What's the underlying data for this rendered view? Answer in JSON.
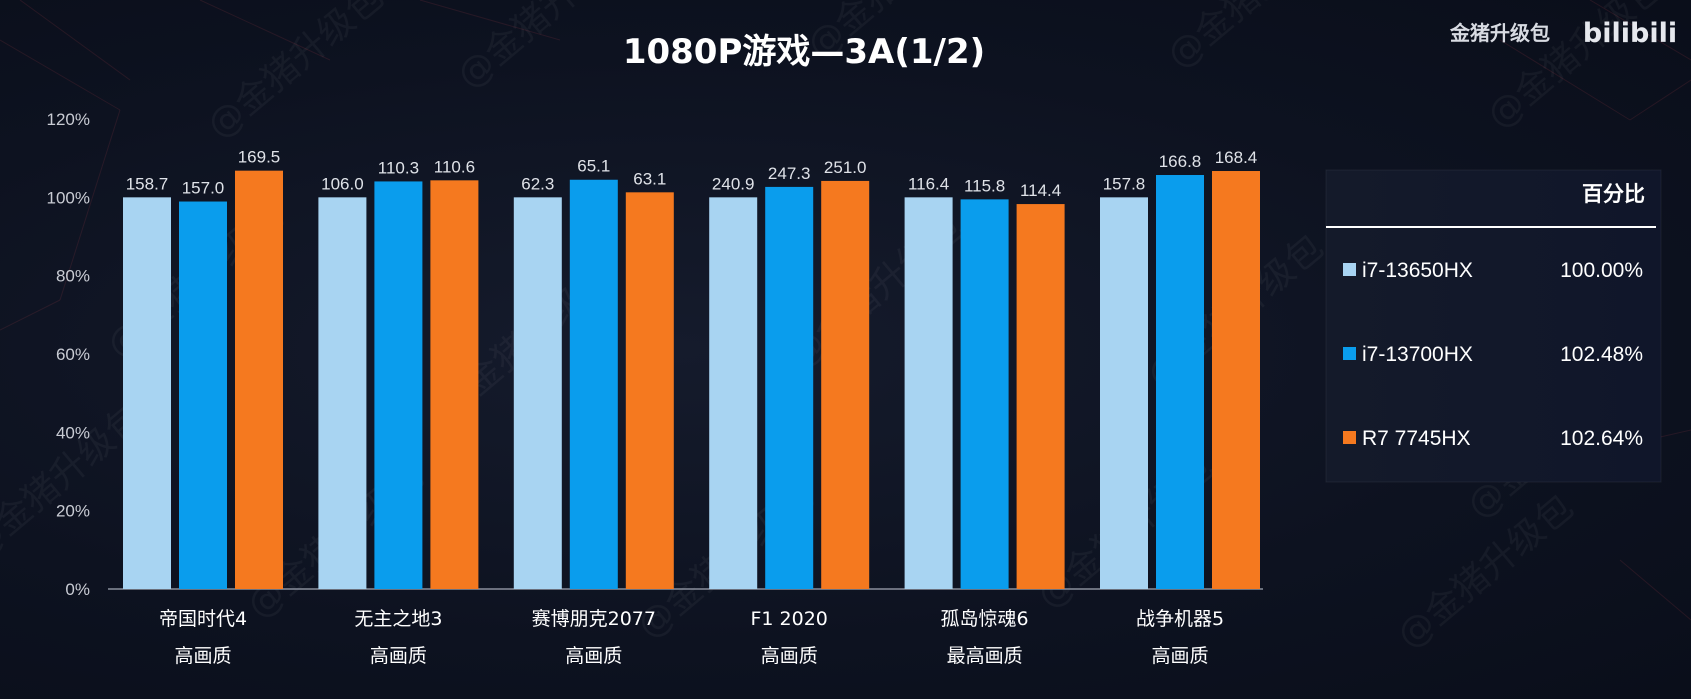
{
  "header": {
    "brand_text": "金猪升级包",
    "logo_text": "bilibili"
  },
  "watermark_text": "@金猪升级包",
  "colors": {
    "background": "#0d1220",
    "series": [
      "#a8d4f2",
      "#0a9ded",
      "#f5791f"
    ]
  },
  "chart_data": {
    "type": "bar",
    "title": "1080P游戏—3A(1/2)",
    "xlabel": "",
    "ylabel": "",
    "ylim": [
      0,
      1.2
    ],
    "yticks": [
      "0%",
      "20%",
      "40%",
      "60%",
      "80%",
      "100%",
      "120%"
    ],
    "grid": false,
    "legend_position": "right",
    "categories": [
      {
        "name": "帝国时代4",
        "setting": "高画质"
      },
      {
        "name": "无主之地3",
        "setting": "高画质"
      },
      {
        "name": "赛博朋克2077",
        "setting": "高画质"
      },
      {
        "name": "F1 2020",
        "setting": "高画质"
      },
      {
        "name": "孤岛惊魂6",
        "setting": "最高画质"
      },
      {
        "name": "战争机器5",
        "setting": "高画质"
      }
    ],
    "series": [
      {
        "name": "i7-13650HX",
        "summary": "100.00%",
        "fps": [
          158.7,
          106.0,
          62.3,
          240.9,
          116.4,
          157.8
        ],
        "labels": [
          "158.7",
          "106.0",
          "62.3",
          "240.9",
          "116.4",
          "157.8"
        ]
      },
      {
        "name": "i7-13700HX",
        "summary": "102.48%",
        "fps": [
          157.0,
          110.3,
          65.1,
          247.3,
          115.8,
          166.8
        ],
        "labels": [
          "157.0",
          "110.3",
          "65.1",
          "247.3",
          "115.8",
          "166.8"
        ]
      },
      {
        "name": "R7 7745HX",
        "summary": "102.64%",
        "fps": [
          169.5,
          110.6,
          63.1,
          251.0,
          114.4,
          168.4
        ],
        "labels": [
          "169.5",
          "110.6",
          "63.1",
          "251.0",
          "114.4",
          "168.4"
        ]
      }
    ],
    "relative_values": [
      [
        1.0,
        1.0,
        1.0,
        1.0,
        1.0,
        1.0
      ],
      [
        0.9893,
        1.0406,
        1.0449,
        1.0266,
        0.9948,
        1.057
      ],
      [
        1.0681,
        1.0434,
        1.0128,
        1.0419,
        0.9828,
        1.0672
      ]
    ],
    "legend_title": "百分比"
  }
}
